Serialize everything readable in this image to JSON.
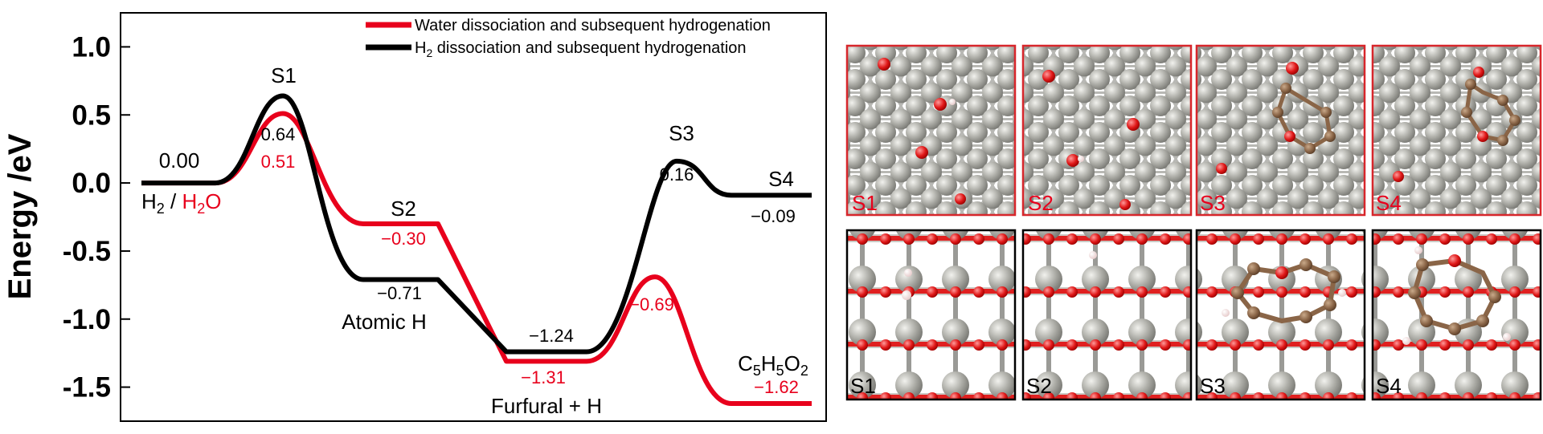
{
  "chart_data": {
    "type": "line",
    "ylabel": "Energy /eV",
    "ylim": [
      -1.75,
      1.25
    ],
    "yticks": [
      "1.0",
      "0.5",
      "0.0",
      "-0.5",
      "-1.0",
      "-1.5"
    ],
    "ytick_values": [
      1.0,
      0.5,
      0.0,
      -0.5,
      -1.0,
      -1.5
    ],
    "legend": [
      "Water dissociation and subsequent hydrogenation",
      "H2 dissociation and subsequent hydrogenation"
    ],
    "legend_placement": "top-right",
    "series": [
      {
        "name": "Water dissociation and subsequent hydrogenation",
        "color": "#e8001c",
        "stages": [
          "H2 / H2O",
          "S1",
          "S2",
          "Furfural + H",
          "S3",
          "S4"
        ],
        "values": [
          0.0,
          0.51,
          -0.3,
          -1.31,
          -0.69,
          -1.62
        ]
      },
      {
        "name": "H2 dissociation and subsequent hydrogenation",
        "color": "#000000",
        "stages": [
          "H2 / H2O",
          "S1",
          "Atomic H",
          "Furfural + H",
          "S3",
          "S4"
        ],
        "values": [
          0.0,
          0.64,
          -0.71,
          -1.24,
          0.16,
          -0.09
        ]
      }
    ],
    "annotations": {
      "start_value": "0.00",
      "s1_black": "0.64",
      "s1_red": "0.51",
      "s2_red": "−0.30",
      "atomic_black": "−0.71",
      "furfural_black": "−1.24",
      "furfural_red": "−1.31",
      "s3_black": "0.16",
      "s3_red": "−0.69",
      "s4_black": "−0.09",
      "s4_red": "−1.62",
      "label_s1": "S1",
      "label_s2": "S2",
      "label_s3": "S3",
      "label_s4": "S4",
      "label_atomic": "Atomic H",
      "label_furfural": "Furfural + H",
      "label_start_h2": "H",
      "label_start_h2_sub": "2",
      "label_start_sep": " / ",
      "label_start_h2o_h": "H",
      "label_start_h2o_sub": "2",
      "label_start_h2o_o": "O",
      "label_c5": "C",
      "label_c5_sub": "5",
      "label_h5": "H",
      "label_h5_sub": "5",
      "label_o2": "O",
      "label_o2_sub": "2"
    },
    "legend_red_text": "Water dissociation and subsequent hydrogenation",
    "legend_black_h": "H",
    "legend_black_sub": "2",
    "legend_black_rest": " dissociation and subsequent hydrogenation"
  },
  "panels": {
    "top_labels": [
      "S1",
      "S2",
      "S3",
      "S4"
    ],
    "bottom_labels": [
      "S1",
      "S2",
      "S3",
      "S4"
    ],
    "top_border_color": "#d7262b",
    "bottom_border_color": "#000000",
    "label_colors": {
      "top": "#e8001c",
      "bottom": "#000000"
    }
  }
}
